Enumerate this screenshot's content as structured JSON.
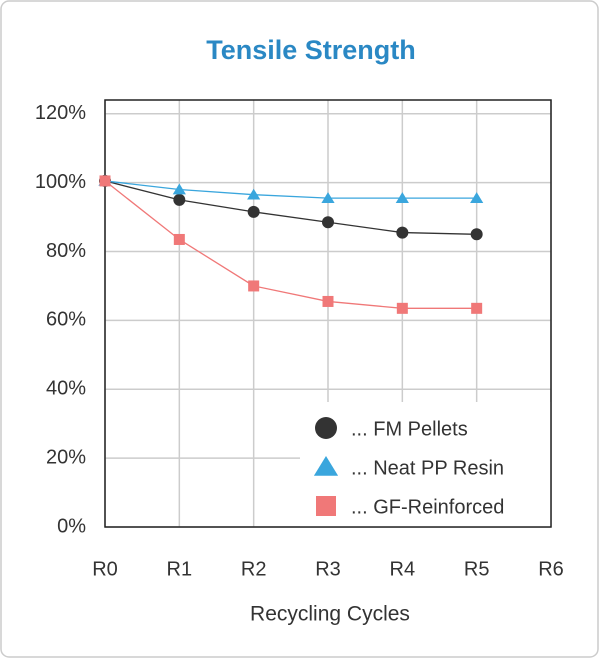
{
  "chart_data": {
    "type": "line",
    "title": "Tensile Strength",
    "x_label": "Recycling Cycles",
    "categories": [
      "R0",
      "R1",
      "R2",
      "R3",
      "R4",
      "R5",
      "R6"
    ],
    "series": [
      {
        "name": "... FM Pellets",
        "color": "#333333",
        "marker": "circle",
        "values": [
          100.5,
          95,
          91.5,
          88.5,
          85.5,
          85,
          null
        ]
      },
      {
        "name": "... Neat PP Resin",
        "color": "#3aa6dd",
        "marker": "triangle",
        "values": [
          100.5,
          98,
          96.5,
          95.5,
          95.5,
          95.5,
          null
        ]
      },
      {
        "name": "... GF-Reinforced",
        "color": "#f07878",
        "marker": "square",
        "values": [
          100.5,
          83.5,
          70,
          65.5,
          63.5,
          63.5,
          null
        ]
      }
    ],
    "ylim": [
      0,
      124
    ],
    "yticks": [
      {
        "value": 0,
        "label": "0%"
      },
      {
        "value": 20,
        "label": "20%"
      },
      {
        "value": 40,
        "label": "40%"
      },
      {
        "value": 60,
        "label": "60%"
      },
      {
        "value": 80,
        "label": "80%"
      },
      {
        "value": 100,
        "label": "100%"
      },
      {
        "value": 120,
        "label": "120%"
      }
    ],
    "grid": true,
    "legend": "lower right"
  }
}
